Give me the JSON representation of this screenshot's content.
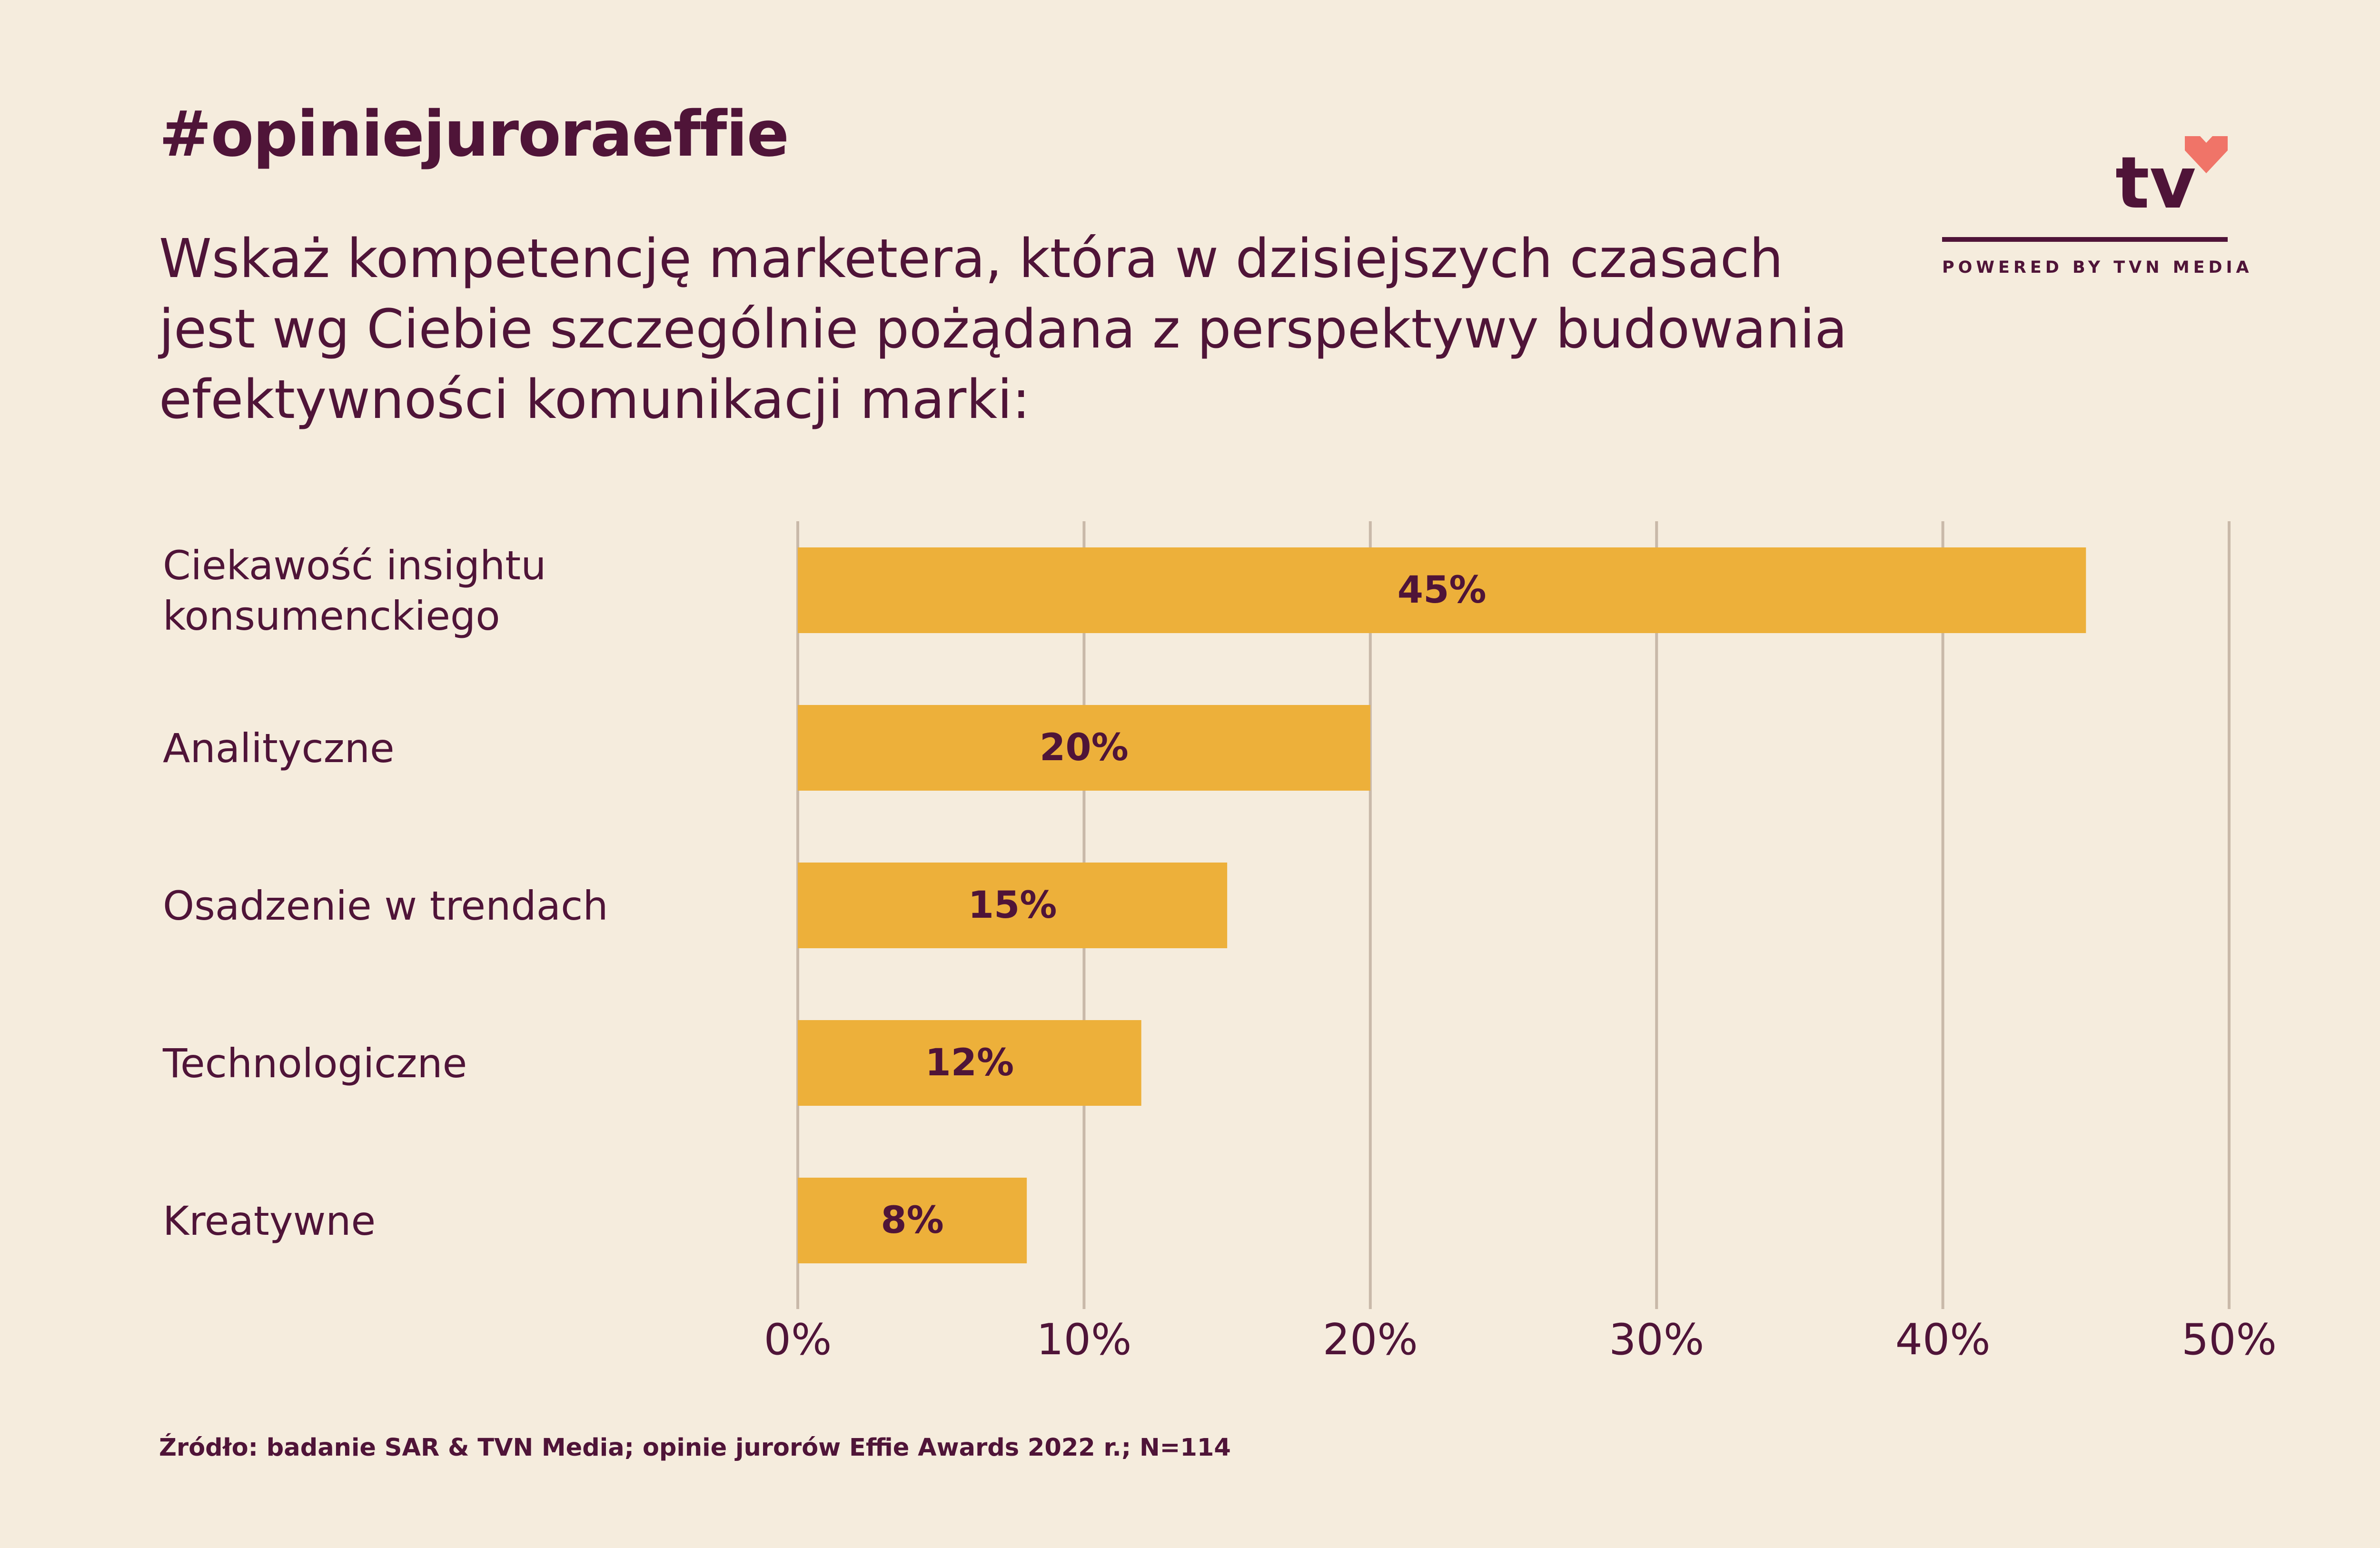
{
  "header": {
    "hashtag": "#opiniejuroraeffie",
    "question": "Wskaż kompetencję marketera, która w dzisiejszych czasach jest wg Ciebie szczególnie pożądana z perspektywy budowania efektywności komunikacji marki:"
  },
  "logo": {
    "text": "tv",
    "tagline": "POWERED BY TVN MEDIA",
    "heart_color": "#f07468"
  },
  "colors": {
    "bar": "#edb03a",
    "text": "#4f1438",
    "grid": "#c9b9a9",
    "background": "#f5ecdd"
  },
  "chart_data": {
    "type": "bar",
    "orientation": "horizontal",
    "categories": [
      [
        "Ciekawość insightu",
        "konsumenckiego"
      ],
      [
        "Analityczne"
      ],
      [
        "Osadzenie w trendach"
      ],
      [
        "Technologiczne"
      ],
      [
        "Kreatywne"
      ]
    ],
    "values": [
      45,
      20,
      15,
      12,
      8
    ],
    "data_labels": [
      "45%",
      "20%",
      "15%",
      "12%",
      "8%"
    ],
    "xlim": [
      0,
      50
    ],
    "ticks": [
      0,
      10,
      20,
      30,
      40,
      50
    ],
    "tick_labels": [
      "0%",
      "10%",
      "20%",
      "30%",
      "40%",
      "50%"
    ],
    "grid": true,
    "legend": "none"
  },
  "footer": {
    "source": "Źródło: badanie SAR & TVN Media; opinie jurorów Effie Awards 2022 r.; N=114"
  }
}
